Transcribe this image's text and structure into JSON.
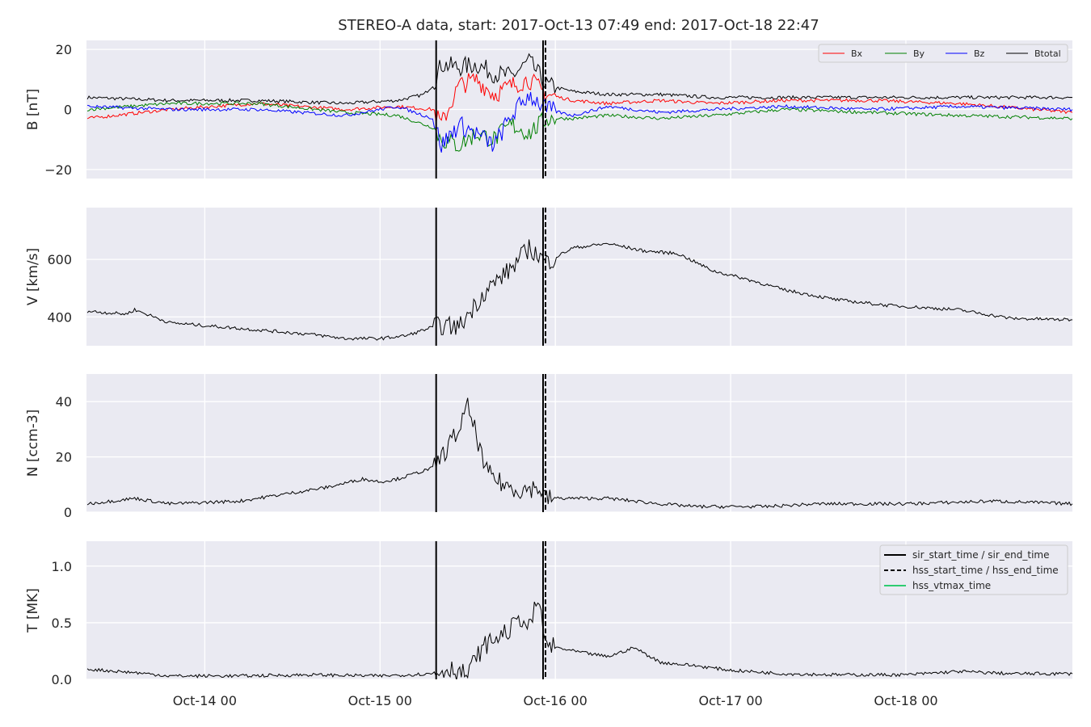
{
  "title": "STEREO-A data, start: 2017-Oct-13 07:49  end: 2017-Oct-18 22:47",
  "colors": {
    "background": "#eaeaf2",
    "grid": "#ffffff",
    "Bx": "#ff0000",
    "By": "#008000",
    "Bz": "#0000ff",
    "Btotal": "#000000",
    "hss_vtmax": "#2ecc71"
  },
  "chart_data": [
    {
      "type": "line",
      "ylabel": "B [nT]",
      "ylim": [
        -23,
        23
      ],
      "yticks": [
        20,
        0,
        -20
      ],
      "ytick_labels": [
        "20",
        "0",
        "−20"
      ],
      "legend": {
        "position": "top-right",
        "entries": [
          "Bx",
          "By",
          "Bz",
          "Btotal"
        ]
      },
      "series": [
        {
          "name": "Btotal",
          "color": "#000000",
          "x": [
            13.33,
            13.8,
            14.3,
            14.8,
            15.1,
            15.25,
            15.3,
            15.35,
            15.45,
            15.55,
            15.65,
            15.75,
            15.85,
            15.9,
            15.95,
            16.1,
            16.3,
            16.6,
            16.9,
            17.3,
            17.8,
            18.3,
            18.95
          ],
          "y": [
            4,
            3,
            3,
            2,
            3,
            5,
            8,
            15,
            14,
            15,
            12,
            11,
            16,
            12,
            8,
            6,
            5,
            5,
            4,
            4,
            4,
            4,
            4
          ]
        },
        {
          "name": "Bx",
          "color": "#ff0000",
          "x": [
            13.33,
            13.8,
            14.3,
            14.8,
            15.1,
            15.3,
            15.35,
            15.45,
            15.55,
            15.65,
            15.75,
            15.85,
            15.95,
            16.1,
            16.3,
            16.6,
            16.9,
            17.3,
            17.8,
            18.3,
            18.95
          ],
          "y": [
            -3,
            0,
            2,
            0,
            1,
            0,
            -5,
            8,
            10,
            5,
            8,
            10,
            5,
            3,
            2,
            3,
            2,
            3,
            3,
            2,
            -1
          ]
        },
        {
          "name": "By",
          "color": "#008000",
          "x": [
            13.33,
            13.8,
            14.3,
            14.8,
            15.1,
            15.3,
            15.35,
            15.45,
            15.55,
            15.65,
            15.75,
            15.85,
            15.95,
            16.1,
            16.3,
            16.6,
            16.9,
            17.3,
            17.8,
            18.3,
            18.95
          ],
          "y": [
            0,
            2,
            2,
            -1,
            -2,
            -6,
            -10,
            -12,
            -8,
            -10,
            -5,
            -8,
            -3,
            -3,
            -2,
            -3,
            -2,
            0,
            -1,
            -2,
            -3
          ]
        },
        {
          "name": "Bz",
          "color": "#0000ff",
          "x": [
            13.33,
            13.8,
            14.3,
            14.8,
            15.1,
            15.3,
            15.35,
            15.45,
            15.55,
            15.65,
            15.75,
            15.85,
            15.95,
            16.1,
            16.3,
            16.6,
            16.9,
            17.3,
            17.8,
            18.3,
            18.95
          ],
          "y": [
            1,
            0,
            0,
            -2,
            1,
            -3,
            -12,
            -5,
            -8,
            -12,
            -2,
            5,
            0,
            -2,
            1,
            -1,
            0,
            1,
            0,
            1,
            0
          ]
        }
      ]
    },
    {
      "type": "line",
      "ylabel": "V [km/s]",
      "ylim": [
        300,
        780
      ],
      "yticks": [
        600,
        400
      ],
      "ytick_labels": [
        "600",
        "400"
      ],
      "series": [
        {
          "color": "#000000",
          "x": [
            13.33,
            13.55,
            13.6,
            13.8,
            14.2,
            14.6,
            14.8,
            15.0,
            15.15,
            15.3,
            15.35,
            15.45,
            15.6,
            15.75,
            15.85,
            15.95,
            16.1,
            16.3,
            16.5,
            16.7,
            16.9,
            17.1,
            17.3,
            17.6,
            17.9,
            18.3,
            18.6,
            18.95
          ],
          "y": [
            420,
            410,
            425,
            380,
            360,
            340,
            325,
            325,
            335,
            365,
            370,
            365,
            490,
            570,
            640,
            590,
            640,
            655,
            630,
            620,
            560,
            530,
            495,
            460,
            440,
            425,
            395,
            390
          ]
        }
      ]
    },
    {
      "type": "line",
      "ylabel": "N [ccm-3]",
      "ylim": [
        0,
        50
      ],
      "yticks": [
        40,
        20,
        0
      ],
      "ytick_labels": [
        "40",
        "20",
        "0"
      ],
      "series": [
        {
          "color": "#000000",
          "x": [
            13.33,
            13.6,
            13.8,
            14.2,
            14.5,
            14.7,
            14.9,
            15.0,
            15.1,
            15.3,
            15.35,
            15.4,
            15.45,
            15.5,
            15.55,
            15.6,
            15.7,
            15.8,
            15.9,
            15.95,
            16.3,
            16.6,
            16.8,
            17.2,
            17.5,
            18.0,
            18.5,
            18.95
          ],
          "y": [
            3,
            5,
            3,
            4,
            7,
            9,
            12,
            11,
            12,
            16,
            20,
            25,
            30,
            38,
            28,
            15,
            10,
            8,
            9,
            5,
            5,
            3,
            2,
            2,
            3,
            3,
            4,
            3
          ]
        }
      ]
    },
    {
      "type": "line",
      "ylabel": "T [MK]",
      "ylim": [
        0,
        1.22
      ],
      "yticks": [
        1.0,
        0.5,
        0.0
      ],
      "ytick_labels": [
        "1.0",
        "0.5",
        "0.0"
      ],
      "legend": {
        "position": "top-right",
        "entries": [
          "sir_start_time / sir_end_time",
          "hss_start_time / hss_end_time",
          "hss_vtmax_time"
        ]
      },
      "series": [
        {
          "color": "#000000",
          "x": [
            13.33,
            13.6,
            13.8,
            14.2,
            14.6,
            15.0,
            15.3,
            15.4,
            15.5,
            15.55,
            15.6,
            15.7,
            15.75,
            15.8,
            15.85,
            15.9,
            15.95,
            16.1,
            16.3,
            16.45,
            16.6,
            16.8,
            17.0,
            17.3,
            17.6,
            18.0,
            18.3,
            18.6,
            18.95
          ],
          "y": [
            0.09,
            0.06,
            0.03,
            0.03,
            0.04,
            0.03,
            0.05,
            0.1,
            0.04,
            0.2,
            0.3,
            0.4,
            0.45,
            0.55,
            0.45,
            0.7,
            0.3,
            0.25,
            0.2,
            0.28,
            0.15,
            0.12,
            0.08,
            0.05,
            0.04,
            0.04,
            0.07,
            0.05,
            0.05
          ]
        }
      ]
    }
  ],
  "xaxis": {
    "xlim": [
      13.325,
      18.95
    ],
    "ticks": [
      14,
      15,
      16,
      17,
      18
    ],
    "tick_labels": [
      "Oct-14 00",
      "Oct-15 00",
      "Oct-16 00",
      "Oct-17 00",
      "Oct-18 00"
    ]
  },
  "markers": {
    "sir_start_time": 15.32,
    "sir_end_time": 15.93,
    "hss_start_time": 15.93,
    "hss_end_time": 15.93
  }
}
